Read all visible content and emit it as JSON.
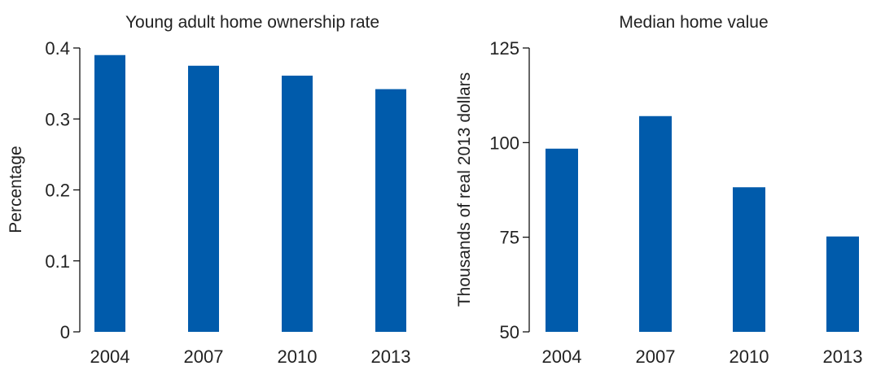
{
  "chart_data": [
    {
      "type": "bar",
      "title": "Young adult home ownership rate",
      "xlabel": "",
      "ylabel": "Percentage",
      "categories": [
        "2004",
        "2007",
        "2010",
        "2013"
      ],
      "values": [
        0.39,
        0.375,
        0.361,
        0.342
      ],
      "ylim": [
        0,
        0.4
      ],
      "yticks": [
        0,
        0.1,
        0.2,
        0.3,
        0.4
      ],
      "ytick_labels": [
        "0",
        "0.1",
        "0.2",
        "0.3",
        "0.4"
      ],
      "color": "#005bab",
      "grid": false,
      "legend": "none"
    },
    {
      "type": "bar",
      "title": "Median home value",
      "xlabel": "",
      "ylabel": "Thousands of real 2013 dollars",
      "categories": [
        "2004",
        "2007",
        "2010",
        "2013"
      ],
      "values": [
        98.4,
        107.0,
        88.2,
        75.2
      ],
      "ylim": [
        50,
        125
      ],
      "yticks": [
        50,
        75,
        100,
        125
      ],
      "ytick_labels": [
        "50",
        "75",
        "100",
        "125"
      ],
      "color": "#005bab",
      "grid": false,
      "legend": "none"
    }
  ]
}
